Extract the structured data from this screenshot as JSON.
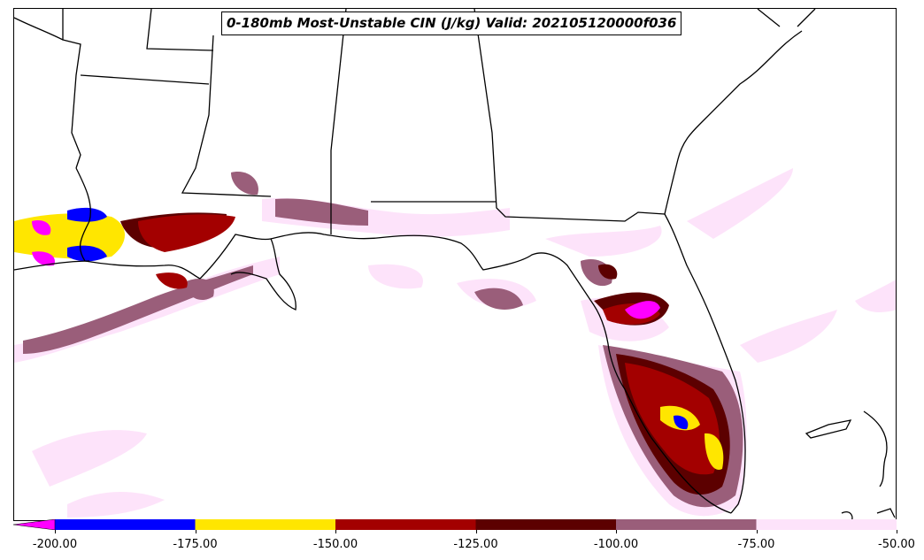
{
  "title": "0-180mb Most-Unstable CIN (J/kg) Valid: 202105120000f036",
  "colorbar": {
    "extend": "min",
    "bins": [
      {
        "from": -200,
        "to": -175,
        "color": "#0000ff"
      },
      {
        "from": -175,
        "to": -150,
        "color": "#ffe600"
      },
      {
        "from": -150,
        "to": -125,
        "color": "#a30000"
      },
      {
        "from": -125,
        "to": -100,
        "color": "#5c0000"
      },
      {
        "from": -100,
        "to": -75,
        "color": "#9a5e7a"
      },
      {
        "from": -75,
        "to": -50,
        "color": "#fde3fa"
      }
    ],
    "under_color": "#ff00ff",
    "ticks": [
      "-200.00",
      "-175.00",
      "-150.00",
      "-125.00",
      "-100.00",
      "-75.00",
      "-50.00"
    ]
  },
  "map": {
    "region": "Gulf of Mexico / Southeast US",
    "line_color": "#000000"
  }
}
